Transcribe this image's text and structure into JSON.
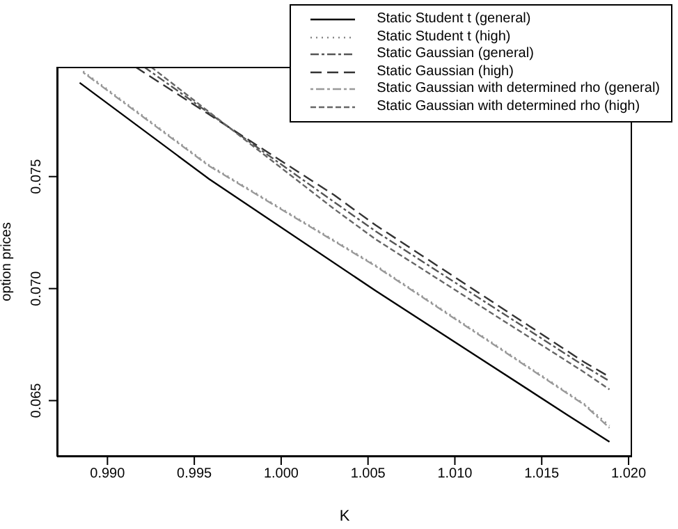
{
  "chart_data": {
    "type": "line",
    "xlabel": "K",
    "ylabel": "option prices",
    "xlim": [
      0.9871,
      1.0202
    ],
    "xticks": [
      {
        "value": 0.99,
        "label": "0.990"
      },
      {
        "value": 0.995,
        "label": "0.995"
      },
      {
        "value": 1.0,
        "label": "1.000"
      },
      {
        "value": 1.005,
        "label": "1.005"
      },
      {
        "value": 1.01,
        "label": "1.010"
      },
      {
        "value": 1.015,
        "label": "1.015"
      },
      {
        "value": 1.02,
        "label": "1.020"
      }
    ],
    "ylim": [
      0.0625,
      0.0799
    ],
    "yticks": [
      {
        "value": 0.065,
        "label": "0.065"
      },
      {
        "value": 0.07,
        "label": "0.070"
      },
      {
        "value": 0.075,
        "label": "0.075"
      }
    ],
    "grid": false,
    "legend": "top right",
    "series": [
      {
        "name": "Static Student t (general)",
        "color": "#000000",
        "line_style": "solid",
        "x": [
          0.9884,
          0.99584,
          1.00544,
          1.01648,
          1.0189
        ],
        "values": [
          0.07919,
          0.0749,
          0.0699,
          0.06436,
          0.06316
        ]
      },
      {
        "name": "Static Student t (high)",
        "color": "#888888",
        "line_style": "dotted",
        "x": [
          0.9886,
          0.99584,
          1.00544,
          1.01744,
          1.0189
        ],
        "values": [
          0.0797,
          0.07552,
          0.07104,
          0.06486,
          0.06388
        ]
      },
      {
        "name": "Static Gaussian (general)",
        "color": "#555555",
        "line_style": "dashed",
        "x": [
          0.9921,
          1.00304,
          1.00544,
          1.01744,
          1.0189
        ],
        "values": [
          0.0799,
          0.07387,
          0.07256,
          0.06655,
          0.06587
        ]
      },
      {
        "name": "Static Gaussian (high)",
        "color": "#333333",
        "line_style": "dashed",
        "x": [
          0.9916,
          1.00304,
          1.00544,
          1.01744,
          1.0189
        ],
        "values": [
          0.0799,
          0.07418,
          0.07283,
          0.06672,
          0.06606
        ]
      },
      {
        "name": "Static Gaussian with determined rho (general)",
        "color": "#999999",
        "line_style": "dashed",
        "x": [
          0.9886,
          0.99584,
          1.00544,
          1.01744,
          1.0189
        ],
        "values": [
          0.07965,
          0.07548,
          0.071,
          0.06482,
          0.06378
        ]
      },
      {
        "name": "Static Gaussian with determined rho (high)",
        "color": "#666666",
        "line_style": "dashed",
        "x": [
          0.9925,
          1.00304,
          1.00544,
          1.01744,
          1.0189
        ],
        "values": [
          0.0799,
          0.07356,
          0.0722,
          0.06627,
          0.0655
        ]
      }
    ]
  }
}
